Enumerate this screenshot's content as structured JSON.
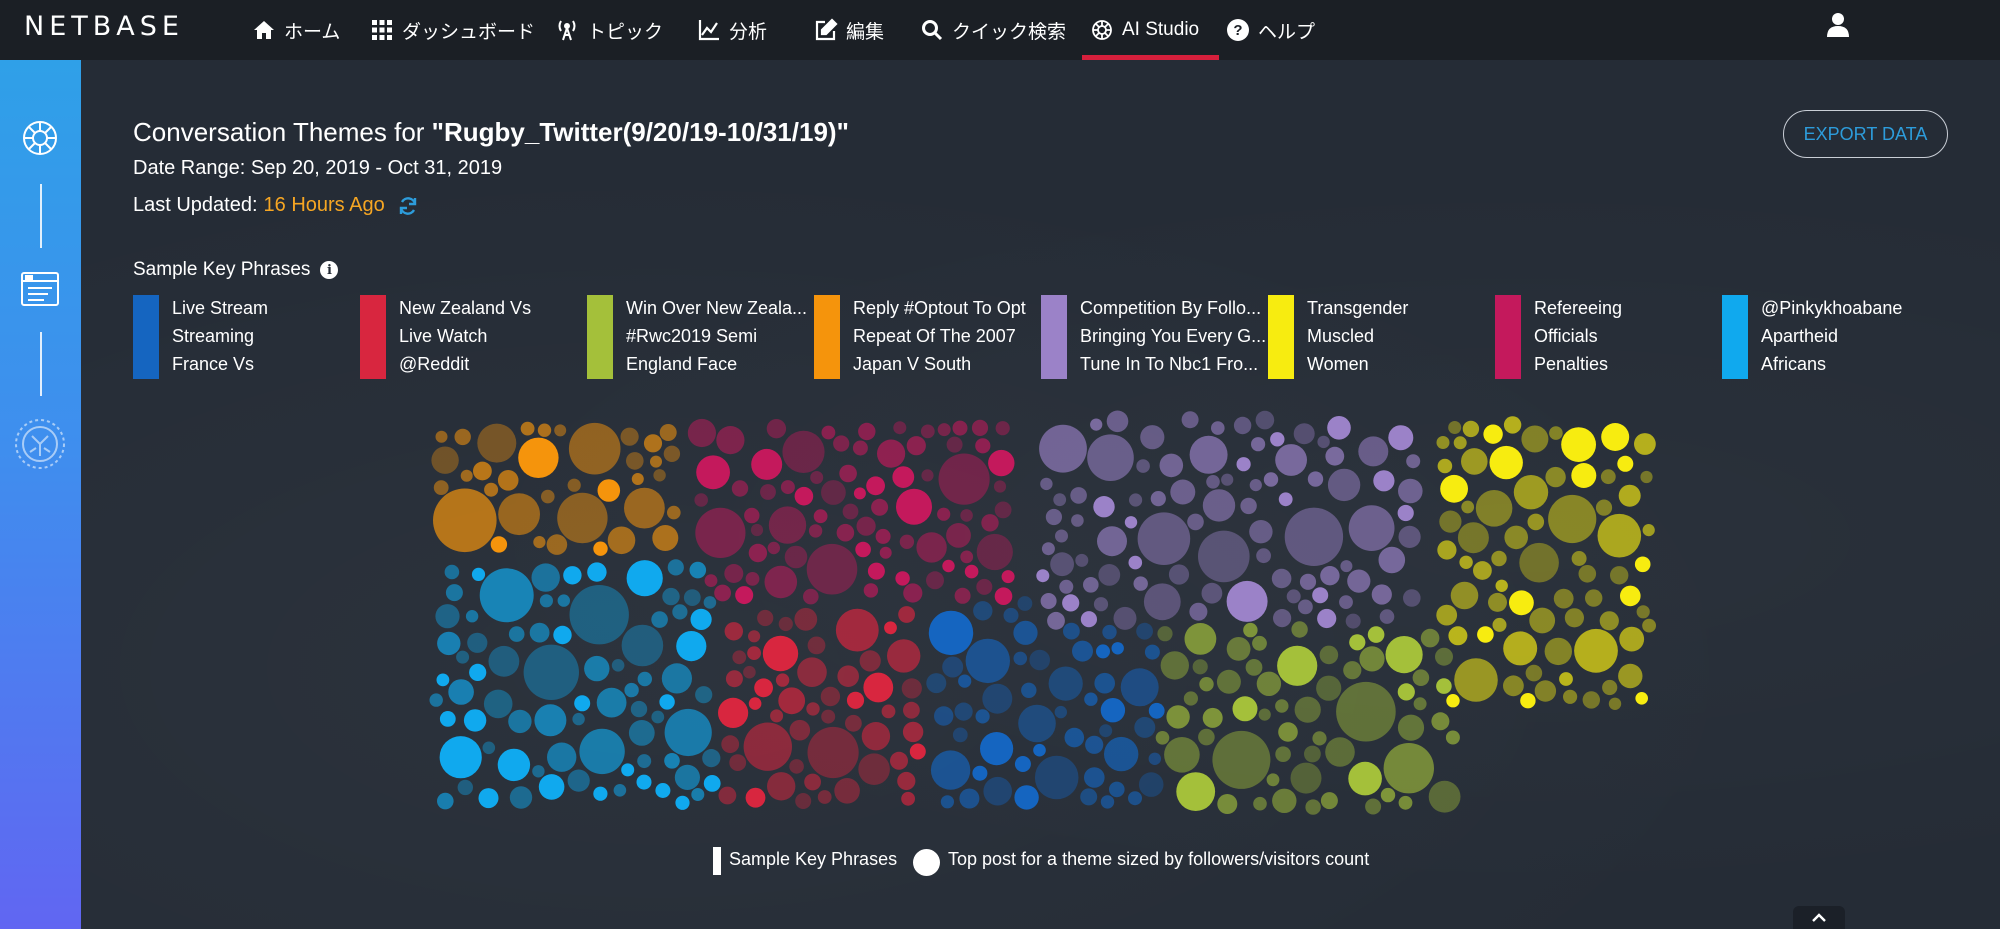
{
  "nav": {
    "logo": "NETBASE",
    "items": [
      {
        "label": "ホーム",
        "icon": "home-icon"
      },
      {
        "label": "ダッシュボード",
        "icon": "grid-icon"
      },
      {
        "label": "トピック",
        "icon": "antenna-icon"
      },
      {
        "label": "分析",
        "icon": "chart-icon"
      },
      {
        "label": "編集",
        "icon": "edit-icon"
      },
      {
        "label": "クイック検索",
        "icon": "search-icon"
      },
      {
        "label": "AI Studio",
        "icon": "ai-brain-icon",
        "active": true
      },
      {
        "label": "ヘルプ",
        "icon": "help-icon"
      }
    ],
    "user_icon": "user-icon"
  },
  "header": {
    "title_prefix": "Conversation Themes for ",
    "title_name": "\"Rugby_Twitter(9/20/19-10/31/19)\"",
    "date_range": "Date Range: Sep 20, 2019 - Oct 31, 2019",
    "last_updated_label": "Last Updated: ",
    "last_updated_value": "16 Hours Ago",
    "export_label": "EXPORT DATA"
  },
  "key_phrases_label": "Sample Key Phrases",
  "themes": [
    {
      "color": "#1565c0",
      "phrases": [
        "Live Stream",
        "Streaming",
        "France Vs"
      ]
    },
    {
      "color": "#d8263f",
      "phrases": [
        "New Zealand Vs",
        "Live Watch",
        "@Reddit"
      ]
    },
    {
      "color": "#a4c03a",
      "phrases": [
        "Win Over New Zeala...",
        "#Rwc2019 Semi",
        "England Face"
      ]
    },
    {
      "color": "#f5940c",
      "phrases": [
        "Reply #Optout To Opt",
        "Repeat Of The 2007",
        "Japan V South"
      ]
    },
    {
      "color": "#9b82c8",
      "phrases": [
        "Competition By Follo...",
        "Bringing You Every G...",
        "Tune In To Nbc1 Fro..."
      ]
    },
    {
      "color": "#f7ec10",
      "phrases": [
        "Transgender",
        "Muscled",
        "Women"
      ]
    },
    {
      "color": "#c4195c",
      "phrases": [
        "Refereeing",
        "Officials",
        "Penalties"
      ]
    },
    {
      "color": "#10a9ee",
      "phrases": [
        "@Pinkykhoabane",
        "Apartheid",
        "Africans"
      ]
    }
  ],
  "legend": {
    "bar_label": "Sample Key Phrases",
    "circle_label": "Top post for a theme sized by followers/visitors count"
  }
}
